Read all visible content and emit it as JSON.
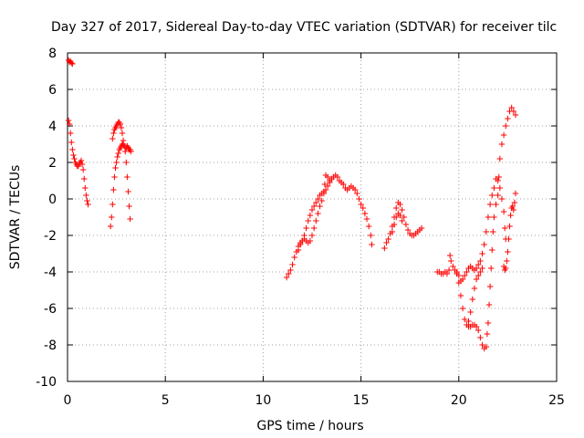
{
  "chart_data": {
    "type": "scatter",
    "title": "Day 327 of 2017, Sidereal Day-to-day VTEC variation (SDTVAR) for receiver tilc",
    "xlabel": "GPS time / hours",
    "ylabel": "SDTVAR / TECUs",
    "xlim": [
      0,
      25
    ],
    "ylim": [
      -10,
      8
    ],
    "xticks": [
      0,
      5,
      10,
      15,
      20,
      25
    ],
    "yticks": [
      -10,
      -8,
      -6,
      -4,
      -2,
      0,
      2,
      4,
      6,
      8
    ],
    "grid": true,
    "marker": "+",
    "color": "#ff0000",
    "segments": [
      [
        [
          0.05,
          7.6
        ],
        [
          0.1,
          7.5
        ],
        [
          0.15,
          7.55
        ],
        [
          0.2,
          7.45
        ],
        [
          0.25,
          7.4
        ]
      ],
      [
        [
          0.05,
          4.3
        ],
        [
          0.1,
          4.1
        ],
        [
          0.15,
          3.6
        ],
        [
          0.2,
          3.1
        ],
        [
          0.25,
          2.7
        ],
        [
          0.3,
          2.4
        ],
        [
          0.35,
          2.2
        ],
        [
          0.4,
          2.0
        ],
        [
          0.45,
          1.9
        ],
        [
          0.5,
          1.8
        ],
        [
          0.55,
          1.8
        ],
        [
          0.6,
          1.9
        ],
        [
          0.65,
          2.0
        ],
        [
          0.7,
          2.1
        ],
        [
          0.75,
          1.9
        ],
        [
          0.8,
          1.6
        ],
        [
          0.85,
          1.1
        ],
        [
          0.9,
          0.6
        ],
        [
          0.95,
          0.2
        ],
        [
          1.0,
          -0.1
        ],
        [
          1.05,
          -0.3
        ]
      ],
      [
        [
          2.2,
          -1.5
        ],
        [
          2.25,
          -1.0
        ],
        [
          2.3,
          -0.3
        ],
        [
          2.35,
          0.5
        ],
        [
          2.4,
          1.2
        ],
        [
          2.45,
          1.7
        ],
        [
          2.5,
          2.0
        ],
        [
          2.55,
          2.3
        ],
        [
          2.6,
          2.5
        ],
        [
          2.65,
          2.7
        ],
        [
          2.7,
          2.8
        ],
        [
          2.75,
          2.9
        ],
        [
          2.8,
          3.0
        ],
        [
          2.85,
          3.0
        ],
        [
          2.9,
          2.9
        ],
        [
          2.95,
          2.6
        ],
        [
          3.0,
          2.0
        ],
        [
          3.05,
          1.2
        ],
        [
          3.1,
          0.4
        ],
        [
          3.15,
          -0.4
        ],
        [
          3.2,
          -1.1
        ]
      ],
      [
        [
          2.3,
          3.3
        ],
        [
          2.35,
          3.6
        ],
        [
          2.4,
          3.8
        ],
        [
          2.45,
          3.9
        ],
        [
          2.5,
          4.0
        ],
        [
          2.55,
          4.1
        ],
        [
          2.6,
          4.2
        ],
        [
          2.65,
          4.2
        ],
        [
          2.7,
          4.1
        ],
        [
          2.75,
          3.9
        ],
        [
          2.8,
          3.6
        ],
        [
          2.85,
          3.2
        ],
        [
          2.9,
          2.9
        ],
        [
          2.95,
          2.8
        ],
        [
          3.0,
          2.8
        ],
        [
          3.05,
          2.9
        ],
        [
          3.1,
          2.8
        ],
        [
          3.15,
          2.7
        ],
        [
          3.2,
          2.7
        ],
        [
          3.25,
          2.6
        ]
      ],
      [
        [
          11.2,
          -4.3
        ],
        [
          11.3,
          -4.1
        ],
        [
          11.4,
          -3.9
        ],
        [
          11.5,
          -3.6
        ],
        [
          11.6,
          -3.2
        ],
        [
          11.7,
          -2.9
        ],
        [
          11.8,
          -2.6
        ],
        [
          11.9,
          -2.4
        ],
        [
          12.0,
          -2.3
        ],
        [
          12.1,
          -2.2
        ],
        [
          12.2,
          -2.3
        ],
        [
          12.3,
          -2.4
        ],
        [
          12.4,
          -2.3
        ],
        [
          12.5,
          -2.0
        ],
        [
          12.6,
          -1.6
        ],
        [
          12.7,
          -1.2
        ],
        [
          12.8,
          -0.8
        ],
        [
          12.9,
          -0.4
        ],
        [
          13.0,
          -0.1
        ],
        [
          13.1,
          0.3
        ],
        [
          13.15,
          0.8
        ],
        [
          13.2,
          1.3
        ],
        [
          13.3,
          1.2
        ],
        [
          13.4,
          1.0
        ],
        [
          13.5,
          1.1
        ],
        [
          13.6,
          1.2
        ],
        [
          13.7,
          1.3
        ],
        [
          13.8,
          1.2
        ],
        [
          13.9,
          1.0
        ],
        [
          14.0,
          0.9
        ],
        [
          14.1,
          0.8
        ],
        [
          14.2,
          0.6
        ],
        [
          14.3,
          0.5
        ],
        [
          14.4,
          0.6
        ],
        [
          14.5,
          0.7
        ],
        [
          14.6,
          0.6
        ],
        [
          14.7,
          0.5
        ],
        [
          14.8,
          0.3
        ],
        [
          14.9,
          0.0
        ],
        [
          15.0,
          -0.3
        ],
        [
          15.1,
          -0.5
        ],
        [
          15.2,
          -0.8
        ],
        [
          15.3,
          -1.1
        ],
        [
          15.4,
          -1.5
        ],
        [
          15.5,
          -2.0
        ],
        [
          15.55,
          -2.5
        ]
      ],
      [
        [
          11.8,
          -2.8
        ],
        [
          11.9,
          -2.5
        ],
        [
          12.0,
          -2.3
        ],
        [
          12.1,
          -2.0
        ],
        [
          12.2,
          -1.6
        ],
        [
          12.3,
          -1.2
        ],
        [
          12.4,
          -0.9
        ],
        [
          12.5,
          -0.6
        ],
        [
          12.6,
          -0.4
        ],
        [
          12.7,
          -0.2
        ],
        [
          12.8,
          0.0
        ],
        [
          12.9,
          0.2
        ],
        [
          13.0,
          0.3
        ],
        [
          13.1,
          0.4
        ],
        [
          13.2,
          0.5
        ],
        [
          13.3,
          0.7
        ],
        [
          13.4,
          0.9
        ],
        [
          13.5,
          1.1
        ]
      ],
      [
        [
          16.2,
          -2.7
        ],
        [
          16.3,
          -2.4
        ],
        [
          16.4,
          -2.2
        ],
        [
          16.5,
          -1.9
        ],
        [
          16.6,
          -1.5
        ],
        [
          16.7,
          -1.0
        ],
        [
          16.8,
          -0.5
        ],
        [
          16.9,
          -0.2
        ],
        [
          17.0,
          -0.3
        ],
        [
          17.1,
          -0.6
        ],
        [
          17.2,
          -1.0
        ],
        [
          17.3,
          -1.4
        ],
        [
          17.4,
          -1.7
        ],
        [
          17.5,
          -1.9
        ],
        [
          17.6,
          -2.0
        ],
        [
          17.7,
          -2.0
        ],
        [
          17.8,
          -1.9
        ],
        [
          17.9,
          -1.8
        ],
        [
          18.0,
          -1.7
        ],
        [
          18.1,
          -1.6
        ]
      ],
      [
        [
          16.6,
          -1.8
        ],
        [
          16.7,
          -1.4
        ],
        [
          16.8,
          -1.0
        ],
        [
          16.9,
          -0.8
        ],
        [
          17.0,
          -0.9
        ],
        [
          17.1,
          -1.2
        ]
      ],
      [
        [
          18.9,
          -4.0
        ],
        [
          19.0,
          -4.0
        ],
        [
          19.1,
          -4.1
        ],
        [
          19.2,
          -4.1
        ],
        [
          19.3,
          -4.0
        ],
        [
          19.4,
          -4.1
        ],
        [
          19.5,
          -3.9
        ],
        [
          19.55,
          -3.1
        ],
        [
          19.6,
          -3.4
        ],
        [
          19.7,
          -3.7
        ],
        [
          19.8,
          -3.9
        ],
        [
          19.9,
          -4.0
        ],
        [
          20.0,
          -4.2
        ],
        [
          20.1,
          -4.5
        ],
        [
          20.2,
          -4.4
        ],
        [
          20.3,
          -4.2
        ],
        [
          20.4,
          -4.0
        ],
        [
          20.5,
          -3.8
        ],
        [
          20.6,
          -3.7
        ],
        [
          20.7,
          -3.8
        ],
        [
          20.8,
          -3.9
        ],
        [
          20.9,
          -3.8
        ],
        [
          21.0,
          -3.6
        ],
        [
          21.1,
          -3.4
        ],
        [
          21.2,
          -3.0
        ],
        [
          21.3,
          -2.5
        ],
        [
          21.4,
          -1.8
        ],
        [
          21.5,
          -1.0
        ],
        [
          21.6,
          -0.3
        ],
        [
          21.7,
          0.2
        ],
        [
          21.8,
          0.6
        ],
        [
          21.9,
          1.1
        ],
        [
          22.0,
          1.0
        ],
        [
          22.1,
          0.6
        ],
        [
          22.2,
          0.0
        ],
        [
          22.3,
          -0.7
        ],
        [
          22.35,
          -1.6
        ],
        [
          22.4,
          -2.2
        ]
      ],
      [
        [
          19.9,
          -4.1
        ],
        [
          20.0,
          -4.6
        ],
        [
          20.1,
          -5.3
        ],
        [
          20.2,
          -6.0
        ],
        [
          20.3,
          -6.6
        ],
        [
          20.4,
          -6.9
        ],
        [
          20.5,
          -7.0
        ],
        [
          20.6,
          -7.0
        ],
        [
          20.7,
          -6.9
        ],
        [
          20.8,
          -6.9
        ],
        [
          20.9,
          -7.0
        ],
        [
          21.0,
          -7.2
        ],
        [
          21.1,
          -7.6
        ],
        [
          21.2,
          -8.0
        ],
        [
          21.3,
          -8.2
        ],
        [
          21.4,
          -8.1
        ],
        [
          21.45,
          -7.4
        ],
        [
          21.5,
          -6.8
        ],
        [
          21.55,
          -5.8
        ],
        [
          21.6,
          -4.8
        ],
        [
          21.65,
          -3.8
        ],
        [
          21.7,
          -2.8
        ],
        [
          21.75,
          -1.8
        ],
        [
          21.8,
          -1.0
        ],
        [
          21.9,
          -0.3
        ],
        [
          22.0,
          0.2
        ],
        [
          22.05,
          1.2
        ],
        [
          22.1,
          2.2
        ],
        [
          22.2,
          3.0
        ],
        [
          22.3,
          3.5
        ],
        [
          22.4,
          4.0
        ],
        [
          22.5,
          4.4
        ],
        [
          22.6,
          4.8
        ],
        [
          22.7,
          5.0
        ],
        [
          22.8,
          4.8
        ],
        [
          22.9,
          4.6
        ]
      ],
      [
        [
          20.5,
          -6.7
        ],
        [
          20.6,
          -6.2
        ],
        [
          20.7,
          -5.5
        ],
        [
          20.8,
          -4.9
        ],
        [
          20.9,
          -4.4
        ],
        [
          21.0,
          -4.2
        ],
        [
          21.1,
          -4.0
        ],
        [
          21.2,
          -3.8
        ]
      ],
      [
        [
          22.3,
          -3.7
        ],
        [
          22.35,
          -3.9
        ],
        [
          22.4,
          -3.8
        ],
        [
          22.45,
          -3.4
        ],
        [
          22.5,
          -2.9
        ],
        [
          22.55,
          -2.2
        ],
        [
          22.6,
          -1.5
        ],
        [
          22.65,
          -0.9
        ],
        [
          22.7,
          -0.5
        ],
        [
          22.75,
          -0.4
        ],
        [
          22.8,
          -0.6
        ],
        [
          22.85,
          -0.2
        ],
        [
          22.9,
          0.3
        ]
      ]
    ]
  }
}
